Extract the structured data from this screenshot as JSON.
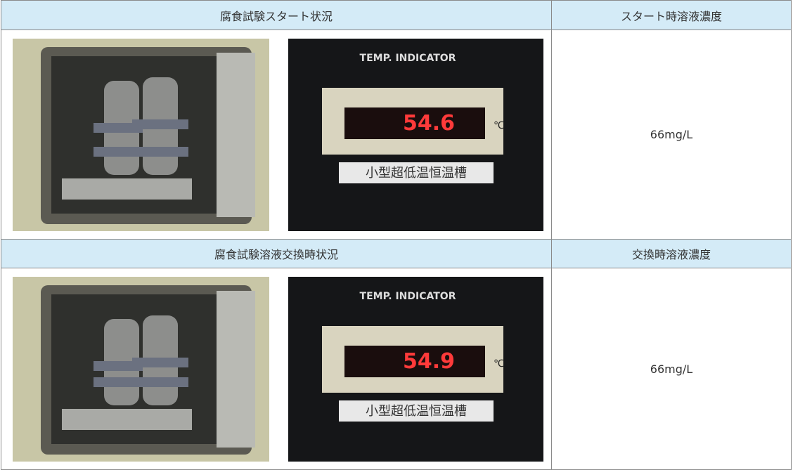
{
  "table": {
    "sections": [
      {
        "header": "腐食試験スタート状況",
        "side_header": "スタート時溶液濃度",
        "concentration": "66mg/L",
        "indicator": {
          "label": "TEMP. INDICATOR",
          "reading": "54.6",
          "unit": "℃",
          "plate": "小型超低温恒温槽"
        }
      },
      {
        "header": "腐食試験溶液交換時状況",
        "side_header": "交換時溶液濃度",
        "concentration": "66mg/L",
        "indicator": {
          "label": "TEMP. INDICATOR",
          "reading": "54.9",
          "unit": "℃",
          "plate": "小型超低温恒温槽"
        }
      }
    ]
  }
}
